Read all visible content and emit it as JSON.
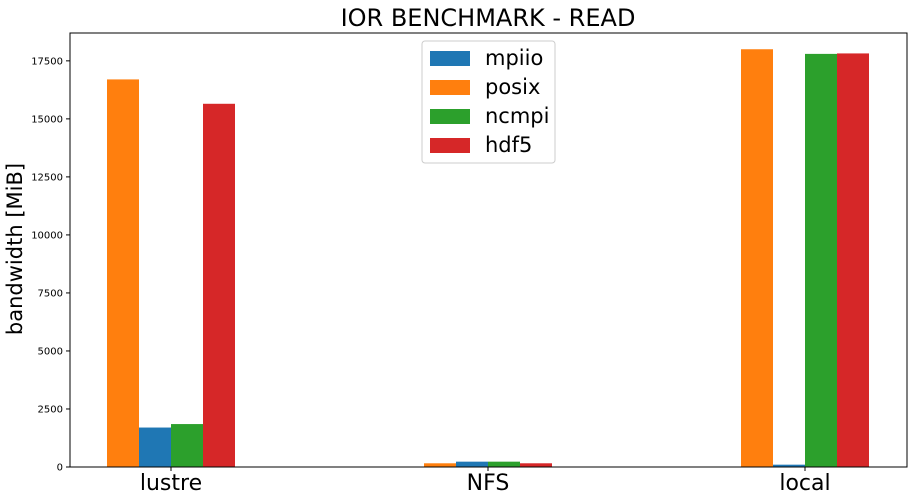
{
  "chart_data": {
    "type": "bar",
    "title": "IOR BENCHMARK - READ",
    "xlabel": "",
    "ylabel": "bandwidth [MiB]",
    "categories": [
      "lustre",
      "NFS",
      "local"
    ],
    "ylim": [
      0,
      18700
    ],
    "yticks": [
      0,
      2500,
      5000,
      7500,
      10000,
      12500,
      15000,
      17500
    ],
    "grid": false,
    "legend_position": "top-center",
    "bar_order": [
      "posix",
      "mpiio",
      "ncmpi",
      "hdf5"
    ],
    "series": [
      {
        "name": "mpiio",
        "color": "#1f77b4",
        "values": [
          1700,
          230,
          100
        ]
      },
      {
        "name": "posix",
        "color": "#ff7f0e",
        "values": [
          16700,
          160,
          18000
        ]
      },
      {
        "name": "ncmpi",
        "color": "#2ca02c",
        "values": [
          1850,
          230,
          17800
        ]
      },
      {
        "name": "hdf5",
        "color": "#d62728",
        "values": [
          15650,
          160,
          17820
        ]
      }
    ]
  }
}
